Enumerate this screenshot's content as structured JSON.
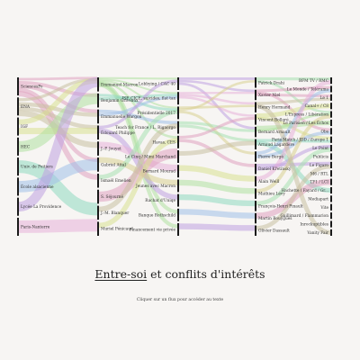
{
  "title": {
    "underlined": "Entre-soi",
    "rest": " et conflits d'intérêts"
  },
  "subtitle": "Cliquer sur un flux pour accéder au texte",
  "columns": [
    {
      "key": "schools",
      "align": "left",
      "nodes": [
        "SciencesPo",
        "ENA",
        "IGF",
        "HEC",
        "Univ. de Poitiers",
        "École alsacienne",
        "Lycée La Providence",
        "Paris-Nanterre"
      ]
    },
    {
      "key": "people1",
      "align": "left",
      "nodes": [
        "Emmanuel Macron",
        "Benjamin Griveaux",
        "Emmanuelle Wargon",
        "Édouard Philippe",
        "J.-P. Jouyet",
        "Gabriel Attal",
        "Ismaël Emelien",
        "S. Séjourné",
        "J.-M. Blanquer",
        "Muriel Pénicaud"
      ]
    },
    {
      "key": "topics",
      "align": "right",
      "nodes": [
        "Lobbying / CAC 40",
        "ISF, CICE, suicides, flat tax",
        "Présidentielle 2017",
        "Teach for France / L. Rigaorgo",
        "Havas, CES",
        "Le Cinq / Mimi Marchand",
        "Bernard Mourad",
        "Jeunes avec Macron",
        "Rachat d'Uniqe",
        "Banque Rothschild",
        "Financement vie privée"
      ]
    },
    {
      "key": "people2",
      "align": "left",
      "nodes": [
        "Patrick Drahi",
        "Xavier Niel",
        "Henry Hermand",
        "Vincent Bolloré",
        "Bernard Arnault",
        "Arnaud Lagardère",
        "Pierre Bergé",
        "Daniel Křetínský",
        "Alain Weill",
        "Mathieu Lévy",
        "François-Henri Pinault",
        "Martin Bouygues",
        "Olivier Dassault"
      ]
    },
    {
      "key": "media",
      "align": "right",
      "nodes": [
        "BFM TV / RMC",
        "Le Monde / Télérama",
        "Le 1",
        "Canal+ / C8",
        "L'Express / Libération",
        "Le Parisien / Les Échos",
        "Obs",
        "Paris Match / JDD / Europe 1",
        "Le Point",
        "Publicis",
        "Le Figaro",
        "M6 / RTL",
        "TF1 / LCI",
        "Hachette / Fayard / Gr...",
        "Mediapart",
        "Vite",
        "Gaillimard / Flammarion",
        "Inrockuptibles",
        "Vanity Fair"
      ]
    }
  ],
  "flows": [
    [
      0,
      0,
      1,
      0
    ],
    [
      0,
      0,
      1,
      1
    ],
    [
      0,
      0,
      1,
      2
    ],
    [
      0,
      0,
      1,
      5
    ],
    [
      0,
      0,
      1,
      6
    ],
    [
      0,
      1,
      1,
      0
    ],
    [
      0,
      1,
      1,
      2
    ],
    [
      0,
      1,
      1,
      3
    ],
    [
      0,
      1,
      1,
      4
    ],
    [
      0,
      2,
      1,
      0
    ],
    [
      0,
      2,
      1,
      3
    ],
    [
      0,
      3,
      1,
      1
    ],
    [
      0,
      4,
      1,
      8
    ],
    [
      0,
      5,
      1,
      5
    ],
    [
      0,
      6,
      1,
      0
    ],
    [
      0,
      7,
      1,
      9
    ],
    [
      1,
      0,
      2,
      0
    ],
    [
      1,
      0,
      2,
      1
    ],
    [
      1,
      0,
      2,
      2
    ],
    [
      1,
      0,
      2,
      4
    ],
    [
      1,
      0,
      2,
      9
    ],
    [
      1,
      0,
      2,
      10
    ],
    [
      1,
      1,
      2,
      2
    ],
    [
      1,
      1,
      2,
      1
    ],
    [
      1,
      2,
      2,
      3
    ],
    [
      1,
      2,
      2,
      1
    ],
    [
      1,
      3,
      2,
      0
    ],
    [
      1,
      3,
      2,
      8
    ],
    [
      1,
      4,
      2,
      6
    ],
    [
      1,
      5,
      2,
      7
    ],
    [
      1,
      6,
      2,
      2
    ],
    [
      1,
      7,
      2,
      5
    ],
    [
      1,
      8,
      2,
      3
    ],
    [
      1,
      9,
      2,
      4
    ],
    [
      2,
      0,
      3,
      0
    ],
    [
      2,
      0,
      3,
      1
    ],
    [
      2,
      0,
      3,
      4
    ],
    [
      2,
      1,
      3,
      1
    ],
    [
      2,
      1,
      3,
      2
    ],
    [
      2,
      1,
      3,
      3
    ],
    [
      2,
      2,
      3,
      2
    ],
    [
      2,
      2,
      3,
      0
    ],
    [
      2,
      2,
      3,
      6
    ],
    [
      2,
      3,
      3,
      4
    ],
    [
      2,
      3,
      3,
      5
    ],
    [
      2,
      4,
      3,
      3
    ],
    [
      2,
      4,
      3,
      7
    ],
    [
      2,
      5,
      3,
      5
    ],
    [
      2,
      6,
      3,
      8
    ],
    [
      2,
      7,
      3,
      9
    ],
    [
      2,
      8,
      3,
      10
    ],
    [
      2,
      9,
      3,
      11
    ],
    [
      2,
      10,
      3,
      12
    ],
    [
      3,
      0,
      4,
      0
    ],
    [
      3,
      0,
      4,
      4
    ],
    [
      3,
      1,
      4,
      1
    ],
    [
      3,
      1,
      4,
      6
    ],
    [
      3,
      1,
      4,
      2
    ],
    [
      3,
      2,
      4,
      2
    ],
    [
      3,
      3,
      4,
      3
    ],
    [
      3,
      3,
      4,
      7
    ],
    [
      3,
      4,
      4,
      5
    ],
    [
      3,
      4,
      4,
      4
    ],
    [
      3,
      5,
      4,
      7
    ],
    [
      3,
      5,
      4,
      13
    ],
    [
      3,
      6,
      4,
      1
    ],
    [
      3,
      6,
      4,
      6
    ],
    [
      3,
      7,
      4,
      10
    ],
    [
      3,
      7,
      4,
      8
    ],
    [
      3,
      8,
      4,
      0
    ],
    [
      3,
      9,
      4,
      4
    ],
    [
      3,
      10,
      4,
      8
    ],
    [
      3,
      11,
      4,
      12
    ],
    [
      3,
      12,
      4,
      10
    ],
    [
      3,
      2,
      4,
      18
    ]
  ],
  "colors": {
    "background": "#f7f5f3",
    "node_bar": "#1a1a1a",
    "palette": [
      "#e0a0c0",
      "#c8c0a0",
      "#d8e090",
      "#b0e0a0",
      "#90d8c0",
      "#a0c0e8",
      "#c0a0e0",
      "#e8b0d8",
      "#d8d090",
      "#a8e0b0"
    ]
  }
}
